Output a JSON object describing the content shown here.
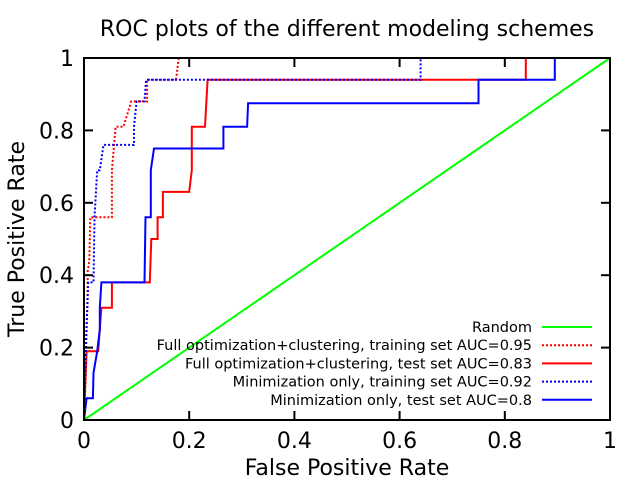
{
  "chart_data": {
    "type": "line",
    "title": "ROC plots of the different modeling schemes",
    "xlabel": "False Positive Rate",
    "ylabel": "True Positive Rate",
    "xlim": [
      0,
      1
    ],
    "ylim": [
      0,
      1
    ],
    "xticks": [
      "0",
      "0.2",
      "0.4",
      "0.6",
      "0.8",
      "1"
    ],
    "yticks": [
      "0",
      "0.2",
      "0.4",
      "0.6",
      "0.8",
      "1"
    ],
    "grid": false,
    "legend_position": "bottom-right",
    "series": [
      {
        "name": "Random",
        "color": "#00ff00",
        "dash": "solid",
        "points": [
          [
            0,
            0
          ],
          [
            1,
            1
          ]
        ]
      },
      {
        "name": "Full optimization+clustering, training set AUC=0.95",
        "color": "#ff0000",
        "dash": "dotted",
        "points": [
          [
            0,
            0
          ],
          [
            0.003,
            0.19
          ],
          [
            0.007,
            0.36
          ],
          [
            0.007,
            0.41
          ],
          [
            0.01,
            0.44
          ],
          [
            0.012,
            0.56
          ],
          [
            0.053,
            0.56
          ],
          [
            0.053,
            0.69
          ],
          [
            0.06,
            0.81
          ],
          [
            0.075,
            0.81
          ],
          [
            0.09,
            0.88
          ],
          [
            0.12,
            0.88
          ],
          [
            0.12,
            0.94
          ],
          [
            0.175,
            0.94
          ],
          [
            0.18,
            1
          ],
          [
            0.2,
            1
          ]
        ]
      },
      {
        "name": "Full optimization+clustering, test set AUC=0.83",
        "color": "#ff0000",
        "dash": "solid",
        "points": [
          [
            0,
            0
          ],
          [
            0.005,
            0.19
          ],
          [
            0.027,
            0.19
          ],
          [
            0.033,
            0.31
          ],
          [
            0.053,
            0.31
          ],
          [
            0.053,
            0.38
          ],
          [
            0.125,
            0.38
          ],
          [
            0.128,
            0.5
          ],
          [
            0.14,
            0.5
          ],
          [
            0.14,
            0.56
          ],
          [
            0.15,
            0.56
          ],
          [
            0.15,
            0.63
          ],
          [
            0.2,
            0.63
          ],
          [
            0.205,
            0.69
          ],
          [
            0.205,
            0.81
          ],
          [
            0.23,
            0.81
          ],
          [
            0.235,
            0.94
          ],
          [
            0.84,
            0.94
          ],
          [
            0.84,
            1
          ],
          [
            0.9,
            1
          ]
        ]
      },
      {
        "name": "Minimization only, training set AUC=0.92",
        "color": "#0000ff",
        "dash": "dotted",
        "points": [
          [
            0,
            0
          ],
          [
            0.005,
            0.25
          ],
          [
            0.008,
            0.38
          ],
          [
            0.018,
            0.38
          ],
          [
            0.02,
            0.56
          ],
          [
            0.025,
            0.69
          ],
          [
            0.03,
            0.69
          ],
          [
            0.037,
            0.76
          ],
          [
            0.095,
            0.76
          ],
          [
            0.095,
            0.81
          ],
          [
            0.1,
            0.88
          ],
          [
            0.115,
            0.88
          ],
          [
            0.118,
            0.94
          ],
          [
            0.64,
            0.94
          ],
          [
            0.64,
            1
          ],
          [
            0.9,
            1
          ]
        ]
      },
      {
        "name": "Minimization only, test set AUC=0.8",
        "color": "#0000ff",
        "dash": "solid",
        "points": [
          [
            0,
            0
          ],
          [
            0.005,
            0.06
          ],
          [
            0.017,
            0.06
          ],
          [
            0.018,
            0.13
          ],
          [
            0.025,
            0.19
          ],
          [
            0.03,
            0.25
          ],
          [
            0.03,
            0.31
          ],
          [
            0.033,
            0.38
          ],
          [
            0.115,
            0.38
          ],
          [
            0.117,
            0.56
          ],
          [
            0.127,
            0.56
          ],
          [
            0.127,
            0.69
          ],
          [
            0.133,
            0.75
          ],
          [
            0.265,
            0.75
          ],
          [
            0.265,
            0.81
          ],
          [
            0.31,
            0.81
          ],
          [
            0.312,
            0.875
          ],
          [
            0.75,
            0.875
          ],
          [
            0.75,
            0.94
          ],
          [
            0.895,
            0.94
          ],
          [
            0.895,
            1
          ]
        ]
      }
    ]
  }
}
